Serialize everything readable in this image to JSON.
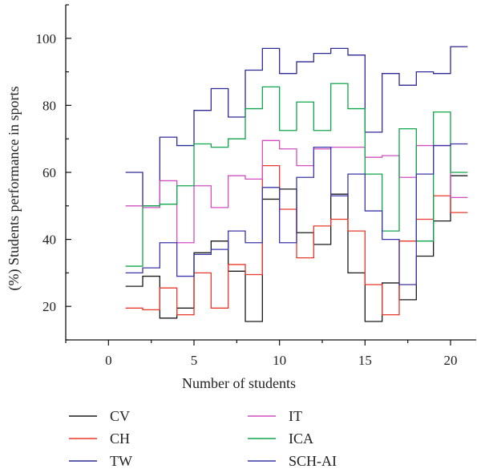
{
  "chart_data": {
    "type": "line",
    "step": true,
    "xlabel": "Number of students",
    "ylabel": "(%) Students performance in sports",
    "xlim": [
      -2.5,
      21.5
    ],
    "ylim": [
      10,
      110
    ],
    "xticks": [
      0,
      5,
      10,
      15,
      20
    ],
    "yticks": [
      20,
      40,
      60,
      80,
      100
    ],
    "x": [
      1,
      2,
      3,
      4,
      5,
      6,
      7,
      8,
      9,
      10,
      11,
      12,
      13,
      14,
      15,
      16,
      17,
      18,
      19,
      20
    ],
    "series": [
      {
        "name": "CV",
        "color": "#1a1a1a",
        "values": [
          26,
          29,
          16.5,
          19.5,
          36,
          39.5,
          30.5,
          15.5,
          52,
          55,
          42,
          38.5,
          53.5,
          30,
          15.5,
          27,
          22,
          35,
          45.5,
          59
        ]
      },
      {
        "name": "CH",
        "color": "#e8382a",
        "values": [
          19.5,
          19,
          25.5,
          17.5,
          30,
          19.5,
          32.5,
          29.5,
          62,
          49,
          34.5,
          44,
          46,
          42.5,
          26.5,
          17.5,
          39.5,
          46,
          53,
          48
        ]
      },
      {
        "name": "TW",
        "color": "#2e2a96",
        "values": [
          60,
          50,
          70.5,
          68,
          78.5,
          85,
          76.5,
          90.5,
          97,
          89.5,
          93,
          95.5,
          97,
          95,
          72,
          89.5,
          86,
          90,
          89.5,
          97.5
        ]
      },
      {
        "name": "IT",
        "color": "#d24fc0",
        "values": [
          50,
          49.5,
          57.5,
          39,
          56,
          49.5,
          59,
          58,
          69.5,
          67,
          62,
          67,
          67.5,
          67.5,
          64.5,
          65,
          58.5,
          68,
          68,
          52.5
        ]
      },
      {
        "name": "ICA",
        "color": "#10a54b",
        "values": [
          32,
          50,
          50.5,
          56,
          68.5,
          67.5,
          70,
          79,
          85.5,
          72.5,
          81,
          72.5,
          86.5,
          79,
          59.5,
          42.5,
          73,
          39.5,
          78,
          60
        ]
      },
      {
        "name": "SCH-AI",
        "color": "#3b36a8",
        "values": [
          30,
          31.5,
          39,
          29,
          35.5,
          37,
          42.5,
          39,
          55.5,
          39,
          58.5,
          67.5,
          53,
          59.5,
          48.5,
          40,
          26.5,
          59.5,
          68,
          68.5
        ]
      }
    ]
  }
}
